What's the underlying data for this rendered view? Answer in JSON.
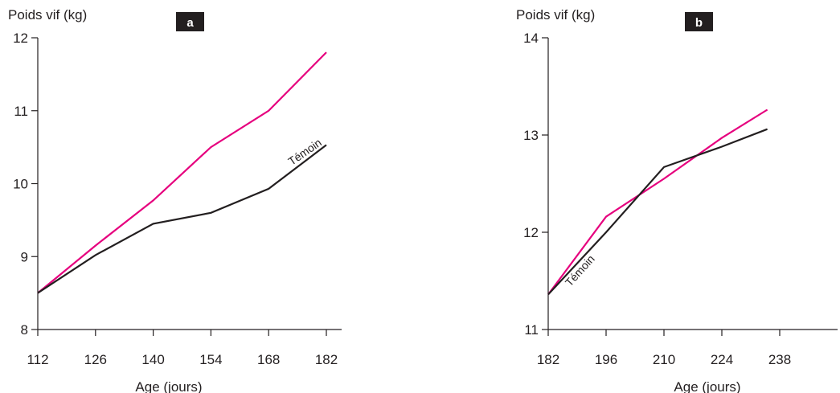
{
  "chart_data": [
    {
      "type": "line",
      "panel_label": "a",
      "ylabel": "Poids vif (kg)",
      "xlabel": "Age (jours)",
      "xlim": [
        112,
        182
      ],
      "ylim": [
        8,
        12
      ],
      "x_ticks": [
        112,
        126,
        140,
        154,
        168,
        182
      ],
      "y_ticks": [
        8,
        9,
        10,
        11,
        12
      ],
      "grid": false,
      "series": [
        {
          "color": "#e6007e",
          "x": [
            112,
            126,
            140,
            154,
            168,
            182
          ],
          "values": [
            8.5,
            9.15,
            9.77,
            10.5,
            11.0,
            11.8
          ]
        },
        {
          "name": "Témoin",
          "color": "#231f20",
          "x": [
            112,
            126,
            140,
            154,
            168,
            182
          ],
          "values": [
            8.5,
            9.02,
            9.45,
            9.6,
            9.93,
            10.53
          ]
        }
      ]
    },
    {
      "type": "line",
      "panel_label": "b",
      "ylabel": "Poids vif (kg)",
      "xlabel": "Age (jours)",
      "xlim": [
        182,
        252
      ],
      "ylim": [
        11,
        14
      ],
      "x_ticks": [
        182,
        196,
        210,
        224,
        238
      ],
      "y_ticks": [
        11,
        12,
        13,
        14
      ],
      "grid": false,
      "series": [
        {
          "color": "#e6007e",
          "x": [
            182,
            196,
            210,
            224,
            235
          ],
          "values": [
            11.36,
            12.16,
            12.55,
            12.97,
            13.26
          ]
        },
        {
          "name": "Témoin",
          "color": "#231f20",
          "x": [
            182,
            196,
            210,
            224,
            235
          ],
          "values": [
            11.36,
            12.0,
            12.67,
            12.88,
            13.06
          ]
        }
      ]
    }
  ]
}
